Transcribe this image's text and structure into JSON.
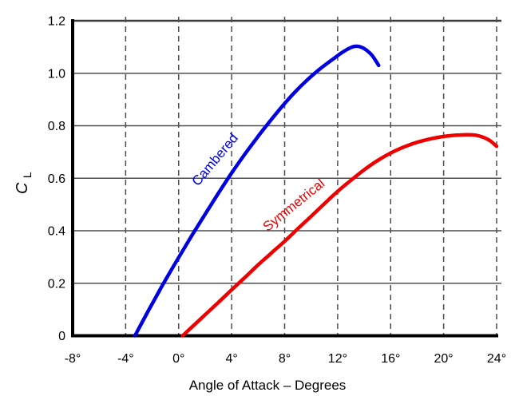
{
  "chart_data": {
    "type": "line",
    "title": "",
    "xlabel": "Angle of Attack – Degrees",
    "ylabel": {
      "main": "C",
      "subscript": "L"
    },
    "xlim": [
      -8,
      24
    ],
    "ylim": [
      0,
      1.2
    ],
    "grid": {
      "horizontal": "solid",
      "vertical": "dashed"
    },
    "legend_position": "inline-curve-labels",
    "x_ticks": [
      {
        "value": -8,
        "label": "-8°"
      },
      {
        "value": -4,
        "label": "-4°"
      },
      {
        "value": 0,
        "label": "0°"
      },
      {
        "value": 4,
        "label": "4°"
      },
      {
        "value": 8,
        "label": "8°"
      },
      {
        "value": 12,
        "label": "12°"
      },
      {
        "value": 16,
        "label": "16°"
      },
      {
        "value": 20,
        "label": "20°"
      },
      {
        "value": 24,
        "label": "24°"
      }
    ],
    "y_ticks": [
      {
        "value": 0,
        "label": "0"
      },
      {
        "value": 0.2,
        "label": "0.2"
      },
      {
        "value": 0.4,
        "label": "0.4"
      },
      {
        "value": 0.6,
        "label": "0.6"
      },
      {
        "value": 0.8,
        "label": "0.8"
      },
      {
        "value": 1.0,
        "label": "1.0"
      },
      {
        "value": 1.2,
        "label": "1.2"
      }
    ],
    "series": [
      {
        "name": "Cambered",
        "color": "#0000e0",
        "zero_lift_angle_deg": -3.3,
        "max_cl": 1.1,
        "stall_angle_deg": 13.3,
        "label": {
          "text": "Cambered",
          "anchor_deg": 3.0,
          "anchor_cl": 0.66,
          "rotation": -50
        },
        "points": [
          [
            -3.3,
            0
          ],
          [
            -2.8,
            0.047
          ],
          [
            -2.2,
            0.103
          ],
          [
            -1.6,
            0.158
          ],
          [
            -1.0,
            0.212
          ],
          [
            0,
            0.298
          ],
          [
            1,
            0.382
          ],
          [
            2,
            0.463
          ],
          [
            3,
            0.543
          ],
          [
            4,
            0.62
          ],
          [
            5,
            0.692
          ],
          [
            6,
            0.76
          ],
          [
            7,
            0.824
          ],
          [
            8,
            0.885
          ],
          [
            9,
            0.94
          ],
          [
            10,
            0.988
          ],
          [
            10.8,
            1.022
          ],
          [
            11.6,
            1.052
          ],
          [
            12.3,
            1.078
          ],
          [
            13.0,
            1.098
          ],
          [
            13.4,
            1.103
          ],
          [
            13.8,
            1.099
          ],
          [
            14.2,
            1.087
          ],
          [
            14.6,
            1.068
          ],
          [
            15.1,
            1.03
          ]
        ]
      },
      {
        "name": "Symmetrical",
        "color": "#ee0000",
        "zero_lift_angle_deg": 0.3,
        "max_cl": 0.765,
        "stall_angle_deg": 21.8,
        "label": {
          "text": "Symmetrical",
          "anchor_deg": 8.9,
          "anchor_cl": 0.485,
          "rotation": -39
        },
        "points": [
          [
            0.3,
            0
          ],
          [
            1,
            0.033
          ],
          [
            2,
            0.08
          ],
          [
            3,
            0.127
          ],
          [
            4,
            0.175
          ],
          [
            5,
            0.222
          ],
          [
            6,
            0.27
          ],
          [
            7,
            0.315
          ],
          [
            8,
            0.36
          ],
          [
            9,
            0.408
          ],
          [
            10,
            0.455
          ],
          [
            11,
            0.503
          ],
          [
            12,
            0.55
          ],
          [
            13,
            0.592
          ],
          [
            14,
            0.632
          ],
          [
            15,
            0.667
          ],
          [
            16,
            0.696
          ],
          [
            17,
            0.719
          ],
          [
            18,
            0.737
          ],
          [
            19,
            0.75
          ],
          [
            20,
            0.759
          ],
          [
            21,
            0.764
          ],
          [
            21.8,
            0.766
          ],
          [
            22.4,
            0.764
          ],
          [
            23,
            0.756
          ],
          [
            23.5,
            0.743
          ],
          [
            24,
            0.722
          ]
        ]
      }
    ],
    "style": {
      "grid_color": "#4d4d4d",
      "top_border_color": "#3d3d3d",
      "axis_color": "#000000",
      "background": "#ffffff"
    }
  }
}
